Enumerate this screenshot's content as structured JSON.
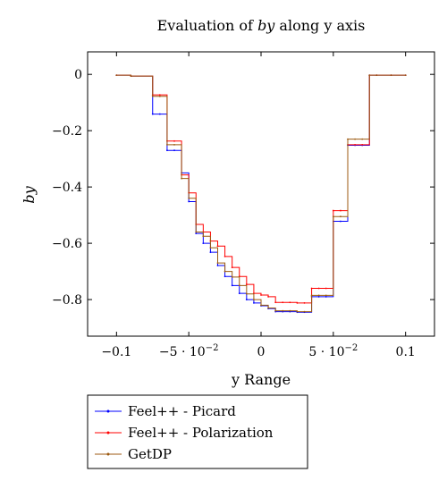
{
  "chart_data": {
    "type": "line",
    "title_prefix": "Evaluation of ",
    "title_var": "by",
    "title_suffix": " along y axis",
    "xlabel": "y Range",
    "ylabel": "by",
    "xlim": [
      -0.12,
      0.12
    ],
    "ylim": [
      -0.93,
      0.08
    ],
    "x_ticks": [
      {
        "value": -0.1,
        "label": "−0.1"
      },
      {
        "value": -0.05,
        "label": "−5 · 10",
        "exp": "−2"
      },
      {
        "value": 0,
        "label": "0"
      },
      {
        "value": 0.05,
        "label": "5 · 10",
        "exp": "−2"
      },
      {
        "value": 0.1,
        "label": "0.1"
      }
    ],
    "y_ticks": [
      {
        "value": 0,
        "label": "0"
      },
      {
        "value": -0.2,
        "label": "−0.2"
      },
      {
        "value": -0.4,
        "label": "−0.4"
      },
      {
        "value": -0.6,
        "label": "−0.6"
      },
      {
        "value": -0.8,
        "label": "−0.8"
      }
    ],
    "grid": false,
    "legend_position": "below",
    "series": [
      {
        "name": "Feel++ - Picard",
        "color": "#0000ff",
        "x": [
          -0.1,
          -0.09,
          -0.075,
          -0.07,
          -0.065,
          -0.06,
          -0.055,
          -0.05,
          -0.045,
          -0.04,
          -0.035,
          -0.03,
          -0.025,
          -0.02,
          -0.015,
          -0.01,
          -0.005,
          0,
          0.005,
          0.01,
          0.015,
          0.02,
          0.025,
          0.03,
          0.035,
          0.04,
          0.045,
          0.05,
          0.055,
          0.06,
          0.065,
          0.07,
          0.075,
          0.08,
          0.09,
          0.1
        ],
        "y": [
          -0.003,
          -0.006,
          -0.141,
          -0.141,
          -0.27,
          -0.27,
          -0.35,
          -0.452,
          -0.565,
          -0.6,
          -0.632,
          -0.679,
          -0.718,
          -0.75,
          -0.778,
          -0.8,
          -0.812,
          -0.822,
          -0.832,
          -0.843,
          -0.843,
          -0.843,
          -0.845,
          -0.845,
          -0.79,
          -0.79,
          -0.79,
          -0.522,
          -0.522,
          -0.252,
          -0.252,
          -0.252,
          -0.003,
          -0.003,
          -0.003,
          -0.003
        ]
      },
      {
        "name": "Feel++ - Polarization",
        "color": "#ff0000",
        "x": [
          -0.1,
          -0.09,
          -0.075,
          -0.07,
          -0.065,
          -0.06,
          -0.055,
          -0.05,
          -0.045,
          -0.04,
          -0.035,
          -0.03,
          -0.025,
          -0.02,
          -0.015,
          -0.01,
          -0.005,
          0,
          0.005,
          0.01,
          0.015,
          0.02,
          0.025,
          0.03,
          0.035,
          0.04,
          0.045,
          0.05,
          0.055,
          0.06,
          0.065,
          0.07,
          0.075,
          0.08,
          0.09,
          0.1
        ],
        "y": [
          -0.003,
          -0.006,
          -0.073,
          -0.073,
          -0.237,
          -0.237,
          -0.357,
          -0.421,
          -0.533,
          -0.56,
          -0.592,
          -0.61,
          -0.647,
          -0.686,
          -0.718,
          -0.746,
          -0.778,
          -0.784,
          -0.79,
          -0.81,
          -0.81,
          -0.81,
          -0.812,
          -0.812,
          -0.76,
          -0.76,
          -0.76,
          -0.484,
          -0.484,
          -0.25,
          -0.25,
          -0.25,
          -0.003,
          -0.003,
          -0.003,
          -0.003
        ]
      },
      {
        "name": "GetDP",
        "color": "#9c5a10",
        "x": [
          -0.1,
          -0.09,
          -0.075,
          -0.07,
          -0.065,
          -0.06,
          -0.055,
          -0.05,
          -0.045,
          -0.04,
          -0.035,
          -0.03,
          -0.025,
          -0.02,
          -0.015,
          -0.01,
          -0.005,
          0,
          0.005,
          0.01,
          0.015,
          0.02,
          0.025,
          0.03,
          0.035,
          0.04,
          0.045,
          0.05,
          0.055,
          0.06,
          0.065,
          0.07,
          0.075,
          0.08,
          0.09,
          0.1
        ],
        "y": [
          -0.003,
          -0.006,
          -0.078,
          -0.078,
          -0.25,
          -0.25,
          -0.37,
          -0.44,
          -0.56,
          -0.575,
          -0.616,
          -0.67,
          -0.7,
          -0.72,
          -0.75,
          -0.78,
          -0.8,
          -0.82,
          -0.83,
          -0.84,
          -0.84,
          -0.84,
          -0.843,
          -0.843,
          -0.785,
          -0.785,
          -0.785,
          -0.505,
          -0.505,
          -0.23,
          -0.23,
          -0.23,
          -0.003,
          -0.003,
          -0.003,
          -0.003
        ]
      }
    ]
  }
}
